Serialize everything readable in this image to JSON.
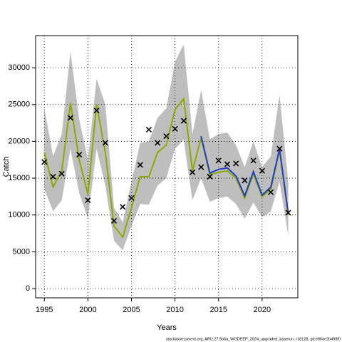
{
  "chart_data": {
    "type": "line",
    "x": [
      1995,
      1996,
      1997,
      1998,
      1999,
      2000,
      2001,
      2002,
      2003,
      2004,
      2005,
      2006,
      2007,
      2008,
      2009,
      2010,
      2011,
      2012,
      2013,
      2014,
      2015,
      2016,
      2017,
      2018,
      2019,
      2020,
      2021,
      2022,
      2023
    ],
    "series": [
      {
        "color": "#8fa800",
        "values": [
          18500,
          13800,
          16000,
          25200,
          17500,
          12800,
          25000,
          18500,
          8500,
          7000,
          11000,
          15200,
          15200,
          18500,
          19500,
          24300,
          25800,
          16000,
          20500,
          15500,
          15800,
          16000,
          15000,
          12300,
          15600,
          12500,
          13500,
          18800,
          10000
        ]
      },
      {
        "color": "#2040c0",
        "values": [
          null,
          null,
          null,
          null,
          null,
          null,
          null,
          null,
          null,
          null,
          null,
          null,
          null,
          null,
          null,
          null,
          null,
          null,
          20700,
          15700,
          16200,
          16400,
          15300,
          12600,
          15900,
          12700,
          13800,
          19000,
          10200
        ]
      }
    ],
    "observed": {
      "marker": "x",
      "color": "#000000",
      "values": [
        17200,
        15200,
        15600,
        23200,
        18200,
        12000,
        24200,
        19800,
        9200,
        11100,
        12300,
        16800,
        21600,
        19800,
        20700,
        21700,
        22800,
        15800,
        16500,
        15200,
        17400,
        16900,
        17000,
        14700,
        17400,
        16000,
        13100,
        19000,
        10300
      ]
    },
    "band": {
      "color": "#bebebe",
      "upper": [
        24500,
        18000,
        21000,
        32200,
        23000,
        17500,
        28500,
        25000,
        11000,
        9000,
        14500,
        19800,
        20000,
        23200,
        24500,
        30800,
        33200,
        21000,
        27000,
        20300,
        21000,
        21200,
        19500,
        16500,
        20000,
        16500,
        18000,
        26300,
        14500
      ],
      "lower": [
        13500,
        10500,
        12000,
        19000,
        13000,
        9500,
        19000,
        14000,
        6500,
        5200,
        8500,
        11500,
        11400,
        14000,
        15000,
        19000,
        20200,
        12000,
        15000,
        11800,
        12300,
        12500,
        11500,
        9500,
        11700,
        9700,
        10500,
        14500,
        7200
      ]
    },
    "xlim": [
      1994,
      2024.1
    ],
    "ylim": [
      -1260,
      34370
    ],
    "xticks": [
      1995,
      2000,
      2005,
      2010,
      2015,
      2020
    ],
    "yticks": [
      0,
      5000,
      10000,
      15000,
      20000,
      25000,
      30000
    ],
    "grid": true,
    "xlabel": "Years",
    "ylabel": "Catch",
    "footer": "stockassessment.org, ARU.27.5b6a_WGDEEP_2024_upgraded_baserun, r18128, git:e86ae2b498f0"
  }
}
